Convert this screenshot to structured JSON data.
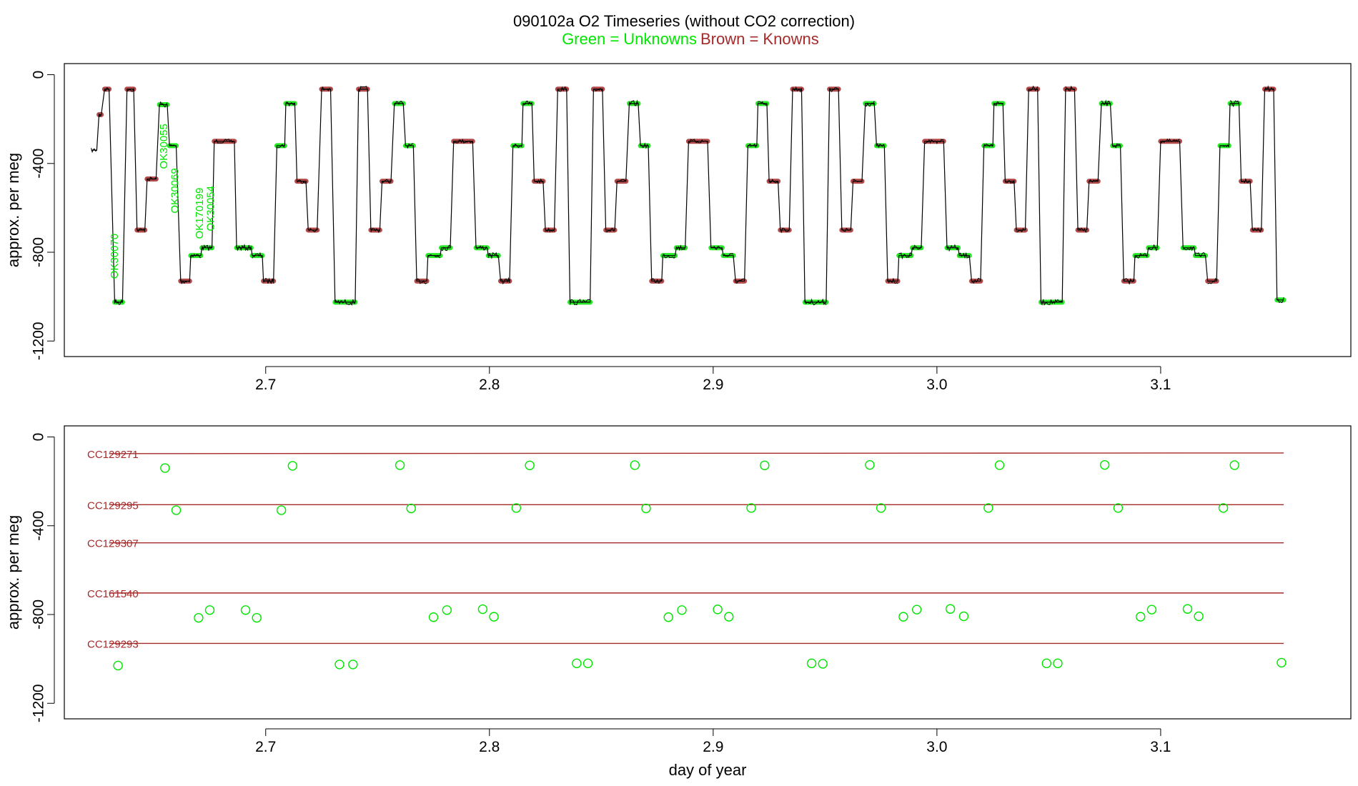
{
  "title": "090102a   O2 Timeseries (without CO2 correction)",
  "subtitle_green": "Green = Unknowns",
  "subtitle_brown": "Brown = Knowns",
  "colors": {
    "green": "#00e600",
    "brown": "#a52a2a",
    "trace": "#000000",
    "frame": "#000000"
  },
  "chart_data": [
    {
      "type": "line",
      "ylabel": "approx. per meg",
      "xlabel": "",
      "xlim": [
        2.61,
        3.185
      ],
      "ylim": [
        -1270,
        50
      ],
      "x_ticks": [
        2.7,
        2.8,
        2.9,
        3.0,
        3.1
      ],
      "x_tick_labels": [
        "2.7",
        "2.8",
        "2.9",
        "3.0",
        "3.1"
      ],
      "y_ticks": [
        0,
        -400,
        -800,
        -1200
      ],
      "y_tick_labels": [
        "0",
        "-400",
        "-800",
        "-1200"
      ],
      "annotations": [
        {
          "text": "OK30070",
          "x": 2.634,
          "y": -920
        },
        {
          "text": "OK30055",
          "x": 2.656,
          "y": -425
        },
        {
          "text": "OK30069",
          "x": 2.661,
          "y": -625
        },
        {
          "text": "OK170199",
          "x": 2.672,
          "y": -740
        },
        {
          "text": "OK30054",
          "x": 2.677,
          "y": -705
        }
      ],
      "segments": [
        {
          "x0": 2.622,
          "x1": 2.6245,
          "y": -340
        },
        {
          "x0": 2.6255,
          "x1": 2.6265,
          "y": -180,
          "kind": "brown"
        },
        {
          "x0": 2.628,
          "x1": 2.63,
          "y": -65,
          "kind": "brown"
        },
        {
          "x0": 2.6325,
          "x1": 2.636,
          "y": -1025,
          "kind": "green"
        },
        {
          "x0": 2.638,
          "x1": 2.641,
          "y": -65,
          "kind": "brown"
        },
        {
          "x0": 2.6425,
          "x1": 2.646,
          "y": -700,
          "kind": "brown"
        },
        {
          "x0": 2.647,
          "x1": 2.651,
          "y": -470,
          "kind": "brown"
        },
        {
          "x0": 2.6525,
          "x1": 2.656,
          "y": -135,
          "kind": "green"
        },
        {
          "x0": 2.657,
          "x1": 2.66,
          "y": -320,
          "kind": "green"
        },
        {
          "x0": 2.662,
          "x1": 2.666,
          "y": -930,
          "kind": "brown"
        },
        {
          "x0": 2.6665,
          "x1": 2.671,
          "y": -815,
          "kind": "green"
        },
        {
          "x0": 2.6715,
          "x1": 2.676,
          "y": -780,
          "kind": "green"
        },
        {
          "x0": 2.677,
          "x1": 2.686,
          "y": -300,
          "kind": "brown"
        },
        {
          "x0": 2.687,
          "x1": 2.6935,
          "y": -780,
          "kind": "green"
        },
        {
          "x0": 2.694,
          "x1": 2.6985,
          "y": -815,
          "kind": "green"
        },
        {
          "x0": 2.699,
          "x1": 2.7035,
          "y": -930,
          "kind": "brown"
        },
        {
          "x0": 2.705,
          "x1": 2.7085,
          "y": -320,
          "kind": "green"
        },
        {
          "x0": 2.709,
          "x1": 2.713,
          "y": -130,
          "kind": "green"
        },
        {
          "x0": 2.714,
          "x1": 2.718,
          "y": -480,
          "kind": "brown"
        },
        {
          "x0": 2.719,
          "x1": 2.723,
          "y": -700,
          "kind": "brown"
        },
        {
          "x0": 2.725,
          "x1": 2.729,
          "y": -65,
          "kind": "brown"
        },
        {
          "x0": 2.731,
          "x1": 2.74,
          "y": -1025,
          "kind": "green"
        },
        {
          "x0": 2.7415,
          "x1": 2.7455,
          "y": -65,
          "kind": "brown"
        },
        {
          "x0": 2.747,
          "x1": 2.751,
          "y": -700,
          "kind": "brown"
        },
        {
          "x0": 2.752,
          "x1": 2.756,
          "y": -480,
          "kind": "brown"
        },
        {
          "x0": 2.7575,
          "x1": 2.7615,
          "y": -130,
          "kind": "green"
        },
        {
          "x0": 2.7625,
          "x1": 2.766,
          "y": -320,
          "kind": "green"
        },
        {
          "x0": 2.7675,
          "x1": 2.772,
          "y": -930,
          "kind": "brown"
        },
        {
          "x0": 2.7725,
          "x1": 2.778,
          "y": -815,
          "kind": "green"
        },
        {
          "x0": 2.7785,
          "x1": 2.7825,
          "y": -780,
          "kind": "green"
        },
        {
          "x0": 2.784,
          "x1": 2.7925,
          "y": -300,
          "kind": "brown"
        },
        {
          "x0": 2.794,
          "x1": 2.799,
          "y": -780,
          "kind": "green"
        },
        {
          "x0": 2.7995,
          "x1": 2.804,
          "y": -815,
          "kind": "green"
        },
        {
          "x0": 2.805,
          "x1": 2.809,
          "y": -930,
          "kind": "brown"
        },
        {
          "x0": 2.8105,
          "x1": 2.8145,
          "y": -320,
          "kind": "green"
        },
        {
          "x0": 2.815,
          "x1": 2.819,
          "y": -130,
          "kind": "green"
        },
        {
          "x0": 2.82,
          "x1": 2.824,
          "y": -480,
          "kind": "brown"
        },
        {
          "x0": 2.825,
          "x1": 2.829,
          "y": -700,
          "kind": "brown"
        },
        {
          "x0": 2.8305,
          "x1": 2.8345,
          "y": -65,
          "kind": "brown"
        },
        {
          "x0": 2.836,
          "x1": 2.845,
          "y": -1025,
          "kind": "green"
        },
        {
          "x0": 2.8465,
          "x1": 2.8505,
          "y": -65,
          "kind": "brown"
        },
        {
          "x0": 2.852,
          "x1": 2.856,
          "y": -700,
          "kind": "brown"
        },
        {
          "x0": 2.857,
          "x1": 2.861,
          "y": -480,
          "kind": "brown"
        },
        {
          "x0": 2.8625,
          "x1": 2.8665,
          "y": -130,
          "kind": "green"
        },
        {
          "x0": 2.8675,
          "x1": 2.871,
          "y": -320,
          "kind": "green"
        },
        {
          "x0": 2.8725,
          "x1": 2.877,
          "y": -930,
          "kind": "brown"
        },
        {
          "x0": 2.8775,
          "x1": 2.883,
          "y": -815,
          "kind": "green"
        },
        {
          "x0": 2.8835,
          "x1": 2.8875,
          "y": -780,
          "kind": "green"
        },
        {
          "x0": 2.889,
          "x1": 2.8975,
          "y": -300,
          "kind": "brown"
        },
        {
          "x0": 2.899,
          "x1": 2.904,
          "y": -780,
          "kind": "green"
        },
        {
          "x0": 2.9045,
          "x1": 2.909,
          "y": -815,
          "kind": "green"
        },
        {
          "x0": 2.91,
          "x1": 2.914,
          "y": -930,
          "kind": "brown"
        },
        {
          "x0": 2.9155,
          "x1": 2.9195,
          "y": -320,
          "kind": "green"
        },
        {
          "x0": 2.92,
          "x1": 2.924,
          "y": -130,
          "kind": "green"
        },
        {
          "x0": 2.925,
          "x1": 2.929,
          "y": -480,
          "kind": "brown"
        },
        {
          "x0": 2.93,
          "x1": 2.934,
          "y": -700,
          "kind": "brown"
        },
        {
          "x0": 2.9355,
          "x1": 2.9395,
          "y": -65,
          "kind": "brown"
        },
        {
          "x0": 2.941,
          "x1": 2.9505,
          "y": -1025,
          "kind": "green"
        },
        {
          "x0": 2.952,
          "x1": 2.956,
          "y": -65,
          "kind": "brown"
        },
        {
          "x0": 2.9575,
          "x1": 2.9615,
          "y": -700,
          "kind": "brown"
        },
        {
          "x0": 2.9625,
          "x1": 2.9665,
          "y": -480,
          "kind": "brown"
        },
        {
          "x0": 2.968,
          "x1": 2.972,
          "y": -130,
          "kind": "green"
        },
        {
          "x0": 2.973,
          "x1": 2.9765,
          "y": -320,
          "kind": "green"
        },
        {
          "x0": 2.978,
          "x1": 2.9825,
          "y": -930,
          "kind": "brown"
        },
        {
          "x0": 2.983,
          "x1": 2.9885,
          "y": -815,
          "kind": "green"
        },
        {
          "x0": 2.989,
          "x1": 2.993,
          "y": -780,
          "kind": "green"
        },
        {
          "x0": 2.9945,
          "x1": 3.003,
          "y": -300,
          "kind": "brown"
        },
        {
          "x0": 3.0045,
          "x1": 3.0095,
          "y": -780,
          "kind": "green"
        },
        {
          "x0": 3.01,
          "x1": 3.0145,
          "y": -815,
          "kind": "green"
        },
        {
          "x0": 3.0155,
          "x1": 3.0195,
          "y": -930,
          "kind": "brown"
        },
        {
          "x0": 3.021,
          "x1": 3.025,
          "y": -320,
          "kind": "green"
        },
        {
          "x0": 3.0255,
          "x1": 3.0295,
          "y": -130,
          "kind": "green"
        },
        {
          "x0": 3.0305,
          "x1": 3.0345,
          "y": -480,
          "kind": "brown"
        },
        {
          "x0": 3.0355,
          "x1": 3.0395,
          "y": -700,
          "kind": "brown"
        },
        {
          "x0": 3.041,
          "x1": 3.045,
          "y": -65,
          "kind": "brown"
        },
        {
          "x0": 3.0465,
          "x1": 3.056,
          "y": -1025,
          "kind": "green"
        },
        {
          "x0": 3.0575,
          "x1": 3.0615,
          "y": -65,
          "kind": "brown"
        },
        {
          "x0": 3.063,
          "x1": 3.067,
          "y": -700,
          "kind": "brown"
        },
        {
          "x0": 3.068,
          "x1": 3.072,
          "y": -480,
          "kind": "brown"
        },
        {
          "x0": 3.0735,
          "x1": 3.0775,
          "y": -130,
          "kind": "green"
        },
        {
          "x0": 3.0785,
          "x1": 3.082,
          "y": -320,
          "kind": "green"
        },
        {
          "x0": 3.0835,
          "x1": 3.088,
          "y": -930,
          "kind": "brown"
        },
        {
          "x0": 3.0885,
          "x1": 3.094,
          "y": -815,
          "kind": "green"
        },
        {
          "x0": 3.0945,
          "x1": 3.0985,
          "y": -780,
          "kind": "green"
        },
        {
          "x0": 3.1,
          "x1": 3.1085,
          "y": -300,
          "kind": "brown"
        },
        {
          "x0": 3.11,
          "x1": 3.115,
          "y": -780,
          "kind": "green"
        },
        {
          "x0": 3.1155,
          "x1": 3.12,
          "y": -815,
          "kind": "green"
        },
        {
          "x0": 3.121,
          "x1": 3.125,
          "y": -930,
          "kind": "brown"
        },
        {
          "x0": 3.1265,
          "x1": 3.1305,
          "y": -320,
          "kind": "green"
        },
        {
          "x0": 3.131,
          "x1": 3.135,
          "y": -130,
          "kind": "green"
        },
        {
          "x0": 3.136,
          "x1": 3.14,
          "y": -480,
          "kind": "brown"
        },
        {
          "x0": 3.141,
          "x1": 3.145,
          "y": -700,
          "kind": "brown"
        },
        {
          "x0": 3.1465,
          "x1": 3.1505,
          "y": -65,
          "kind": "brown"
        },
        {
          "x0": 3.152,
          "x1": 3.155,
          "y": -1015,
          "kind": "green"
        }
      ]
    },
    {
      "type": "scatter",
      "ylabel": "approx. per meg",
      "xlabel": "day of year",
      "xlim": [
        2.61,
        3.185
      ],
      "ylim": [
        -1270,
        50
      ],
      "x_ticks": [
        2.7,
        2.8,
        2.9,
        3.0,
        3.1
      ],
      "x_tick_labels": [
        "2.7",
        "2.8",
        "2.9",
        "3.0",
        "3.1"
      ],
      "y_ticks": [
        0,
        -400,
        -800,
        -1200
      ],
      "y_tick_labels": [
        "0",
        "-400",
        "-800",
        "-1200"
      ],
      "reference_lines": [
        {
          "name": "CC129271",
          "x": [
            2.63,
            3.155
          ],
          "y": [
            -75,
            -72
          ]
        },
        {
          "name": "CC129295",
          "x": [
            2.63,
            3.155
          ],
          "y": [
            -305,
            -305
          ]
        },
        {
          "name": "CC129307",
          "x": [
            2.63,
            3.155
          ],
          "y": [
            -477,
            -477
          ]
        },
        {
          "name": "CC161540",
          "x": [
            2.63,
            3.155
          ],
          "y": [
            -703,
            -703
          ]
        },
        {
          "name": "CC129293",
          "x": [
            2.63,
            3.155
          ],
          "y": [
            -930,
            -930
          ]
        }
      ],
      "points": [
        [
          2.634,
          -1030
        ],
        [
          2.655,
          -140
        ],
        [
          2.66,
          -330
        ],
        [
          2.67,
          -815
        ],
        [
          2.675,
          -780
        ],
        [
          2.691,
          -780
        ],
        [
          2.696,
          -815
        ],
        [
          2.707,
          -330
        ],
        [
          2.712,
          -130
        ],
        [
          2.733,
          -1025
        ],
        [
          2.739,
          -1025
        ],
        [
          2.76,
          -127
        ],
        [
          2.765,
          -322
        ],
        [
          2.775,
          -812
        ],
        [
          2.781,
          -780
        ],
        [
          2.797,
          -776
        ],
        [
          2.802,
          -810
        ],
        [
          2.812,
          -320
        ],
        [
          2.818,
          -128
        ],
        [
          2.839,
          -1020
        ],
        [
          2.844,
          -1020
        ],
        [
          2.865,
          -127
        ],
        [
          2.87,
          -322
        ],
        [
          2.88,
          -812
        ],
        [
          2.886,
          -780
        ],
        [
          2.902,
          -777
        ],
        [
          2.907,
          -810
        ],
        [
          2.917,
          -320
        ],
        [
          2.923,
          -128
        ],
        [
          2.944,
          -1020
        ],
        [
          2.949,
          -1022
        ],
        [
          2.97,
          -126
        ],
        [
          2.975,
          -320
        ],
        [
          2.985,
          -810
        ],
        [
          2.991,
          -778
        ],
        [
          3.006,
          -775
        ],
        [
          3.012,
          -808
        ],
        [
          3.023,
          -320
        ],
        [
          3.028,
          -127
        ],
        [
          3.049,
          -1020
        ],
        [
          3.054,
          -1020
        ],
        [
          3.075,
          -126
        ],
        [
          3.081,
          -320
        ],
        [
          3.091,
          -810
        ],
        [
          3.096,
          -778
        ],
        [
          3.112,
          -775
        ],
        [
          3.117,
          -808
        ],
        [
          3.128,
          -320
        ],
        [
          3.133,
          -127
        ],
        [
          3.154,
          -1017
        ]
      ]
    }
  ]
}
